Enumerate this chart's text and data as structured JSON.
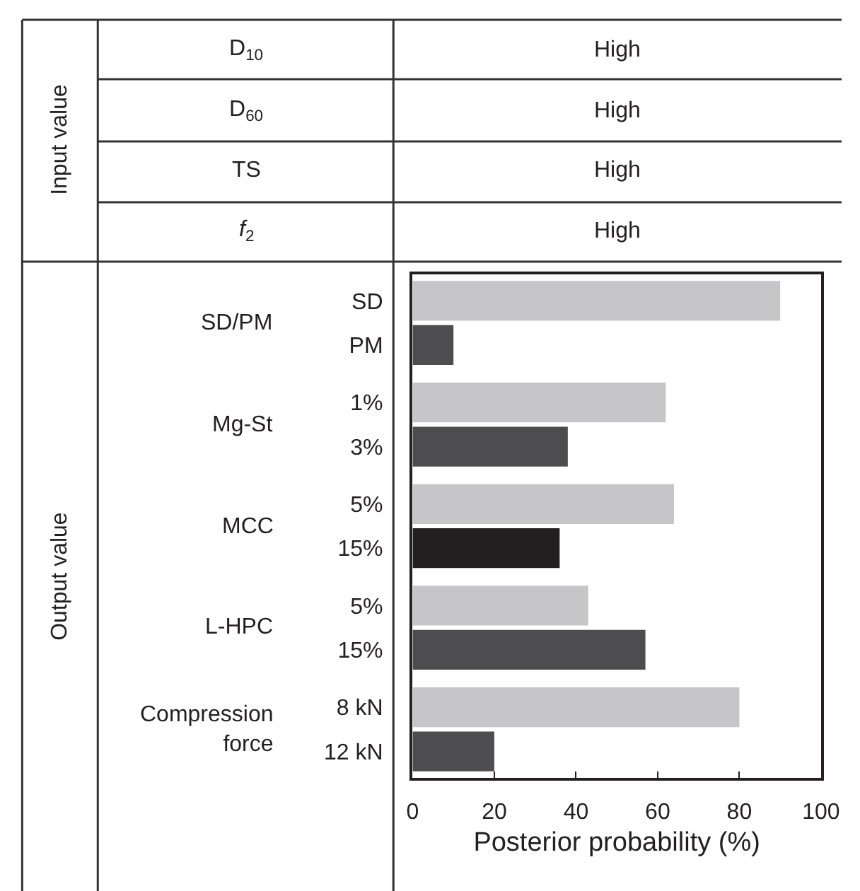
{
  "chart_data": {
    "type": "bar",
    "orientation": "horizontal",
    "xlabel": "Posterior probability (%)",
    "categories": [
      "SD",
      "PM",
      "1%",
      "3%",
      "5%",
      "15%",
      "5%",
      "15%",
      "8 kN",
      "12 kN"
    ],
    "values": [
      90,
      10,
      62,
      38,
      64,
      36,
      43,
      57,
      80,
      20
    ],
    "colors": [
      "#c6c6c8",
      "#4d4d4f",
      "#c6c6c8",
      "#4d4d4f",
      "#c6c6c8",
      "#231f20",
      "#c6c6c8",
      "#4d4d4f",
      "#c6c6c8",
      "#4d4d4f"
    ],
    "xlim": [
      0,
      100
    ],
    "xticks": [
      0,
      20,
      40,
      60,
      80,
      100
    ],
    "annotations": [
      "Input value",
      "D$_{10}$",
      "High",
      "D$_{60}$",
      "High",
      "TS",
      "High",
      "f$_{2}$",
      "High",
      "Output value",
      "SD/PM",
      "Mg-St",
      "MCC",
      "L-HPC",
      "Compression\nforce"
    ]
  }
}
